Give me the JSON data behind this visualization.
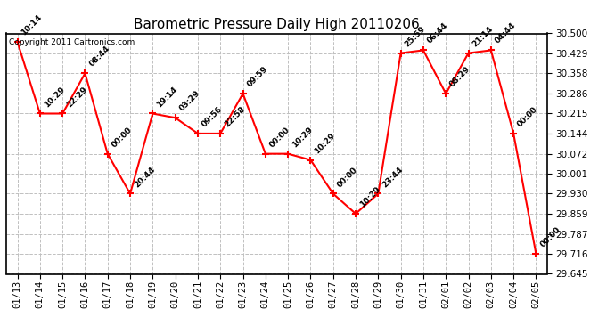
{
  "title": "Barometric Pressure Daily High 20110206",
  "copyright": "Copyright 2011 Cartronics.com",
  "dates": [
    "01/13",
    "01/14",
    "01/15",
    "01/16",
    "01/17",
    "01/18",
    "01/19",
    "01/20",
    "01/21",
    "01/22",
    "01/23",
    "01/24",
    "01/25",
    "01/26",
    "01/27",
    "01/28",
    "01/29",
    "01/30",
    "01/31",
    "02/01",
    "02/02",
    "02/03",
    "02/04",
    "02/05"
  ],
  "values": [
    30.47,
    30.215,
    30.215,
    30.358,
    30.072,
    29.93,
    30.215,
    30.2,
    30.144,
    30.144,
    30.286,
    30.072,
    30.072,
    30.05,
    29.93,
    29.859,
    29.93,
    30.43,
    30.44,
    30.286,
    30.43,
    30.44,
    30.144,
    29.716
  ],
  "labels": [
    "10:14",
    "10:29",
    "22:29",
    "08:44",
    "00:00",
    "20:44",
    "19:14",
    "03:29",
    "09:56",
    "22:58",
    "09:59",
    "00:00",
    "10:29",
    "10:29",
    "00:00",
    "10:29",
    "23:44",
    "25:59",
    "06:44",
    "08:29",
    "21:14",
    "04:44",
    "00:00",
    "00:00"
  ],
  "ylim_min": 29.645,
  "ylim_max": 30.5,
  "yticks": [
    29.645,
    29.716,
    29.787,
    29.859,
    29.93,
    30.001,
    30.072,
    30.144,
    30.215,
    30.286,
    30.358,
    30.429,
    30.5
  ],
  "line_color": "red",
  "marker": "+",
  "marker_size": 6,
  "marker_linewidth": 1.5,
  "line_width": 1.5,
  "background_color": "white",
  "grid_color": "#c0c0c0",
  "title_fontsize": 11,
  "label_fontsize": 6.5,
  "tick_fontsize": 7.5,
  "copyright_fontsize": 6.5
}
